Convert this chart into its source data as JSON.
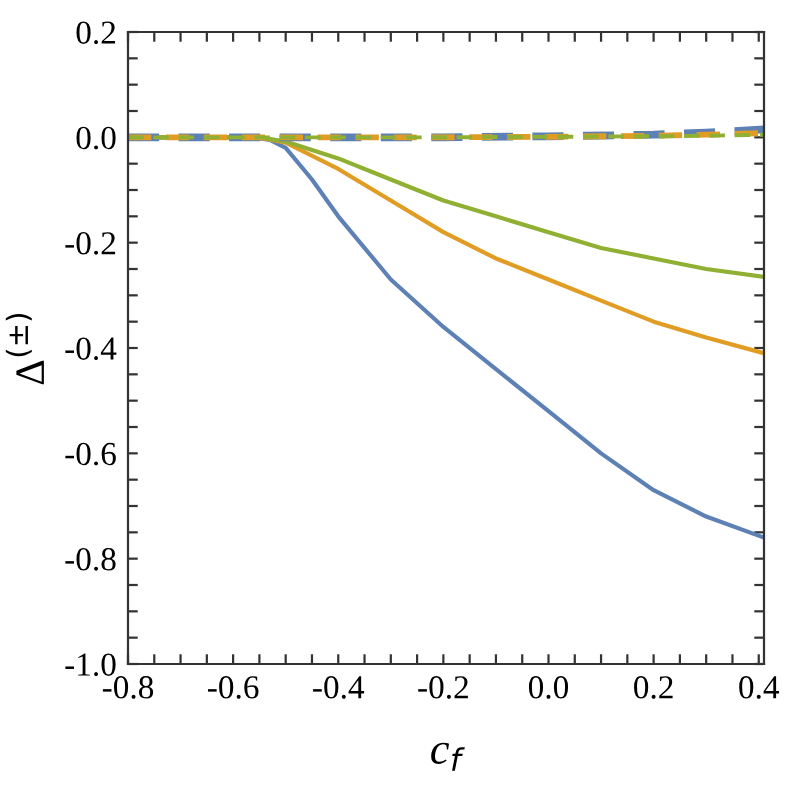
{
  "chart_data": {
    "type": "line",
    "xlabel": "c$_{f}$",
    "ylabel": "Δ$^{(±)}$",
    "xlim": [
      -0.8,
      0.41
    ],
    "ylim": [
      -1.0,
      0.2
    ],
    "xticks": [
      -0.8,
      {
        "value": -0.75,
        "label": null
      },
      {
        "value": -0.7,
        "label": null
      },
      {
        "value": -0.65,
        "label": null
      },
      -0.6,
      {
        "value": -0.55,
        "label": null
      },
      {
        "value": -0.5,
        "label": null
      },
      {
        "value": -0.45,
        "label": null
      },
      -0.4,
      {
        "value": -0.35,
        "label": null
      },
      {
        "value": -0.3,
        "label": null
      },
      {
        "value": -0.25,
        "label": null
      },
      -0.2,
      {
        "value": -0.15,
        "label": null
      },
      {
        "value": -0.1,
        "label": null
      },
      {
        "value": -0.05,
        "label": null
      },
      {
        "value": 0,
        "label": "0.0"
      },
      {
        "value": 0.05,
        "label": null
      },
      {
        "value": 0.1,
        "label": null
      },
      {
        "value": 0.15,
        "label": null
      },
      0.2,
      {
        "value": 0.25,
        "label": null
      },
      {
        "value": 0.3,
        "label": null
      },
      {
        "value": 0.35,
        "label": null
      },
      0.4
    ],
    "yticks": [
      {
        "value": -1.0,
        "label": "-1.0"
      },
      {
        "value": -0.95,
        "label": null
      },
      {
        "value": -0.9,
        "label": null
      },
      {
        "value": -0.85,
        "label": null
      },
      -0.8,
      {
        "value": -0.75,
        "label": null
      },
      {
        "value": -0.7,
        "label": null
      },
      {
        "value": -0.65,
        "label": null
      },
      -0.6,
      {
        "value": -0.55,
        "label": null
      },
      {
        "value": -0.5,
        "label": null
      },
      {
        "value": -0.45,
        "label": null
      },
      -0.4,
      {
        "value": -0.35,
        "label": null
      },
      {
        "value": -0.3,
        "label": null
      },
      {
        "value": -0.25,
        "label": null
      },
      -0.2,
      {
        "value": -0.15,
        "label": null
      },
      {
        "value": -0.1,
        "label": null
      },
      {
        "value": -0.05,
        "label": null
      },
      {
        "value": 0,
        "label": "0.0"
      },
      {
        "value": 0.05,
        "label": null
      },
      {
        "value": 0.1,
        "label": null
      },
      {
        "value": 0.15,
        "label": null
      },
      0.2
    ],
    "grid": false,
    "legend": false,
    "marker": "none",
    "series": [
      {
        "color": "#5e81b5",
        "line_style": "solid",
        "x": [
          -0.8,
          -0.6,
          -0.56,
          -0.53,
          -0.5,
          -0.45,
          -0.4,
          -0.3,
          -0.2,
          -0.1,
          0.0,
          0.1,
          0.2,
          0.3,
          0.41
        ],
        "values": [
          0,
          0,
          0,
          -0.005,
          -0.02,
          -0.08,
          -0.15,
          -0.27,
          -0.36,
          -0.44,
          -0.52,
          -0.6,
          -0.67,
          -0.72,
          -0.76
        ]
      },
      {
        "color": "#e19c24",
        "line_style": "solid",
        "x": [
          -0.8,
          -0.6,
          -0.55,
          -0.5,
          -0.4,
          -0.3,
          -0.2,
          -0.1,
          0.0,
          0.1,
          0.2,
          0.3,
          0.41
        ],
        "values": [
          0,
          0,
          0,
          -0.01,
          -0.06,
          -0.12,
          -0.18,
          -0.23,
          -0.27,
          -0.31,
          -0.35,
          -0.38,
          -0.41
        ]
      },
      {
        "color": "#8fb032",
        "line_style": "solid",
        "x": [
          -0.8,
          -0.6,
          -0.55,
          -0.5,
          -0.4,
          -0.3,
          -0.2,
          -0.1,
          0.0,
          0.1,
          0.2,
          0.3,
          0.41
        ],
        "values": [
          0,
          0,
          0,
          -0.008,
          -0.04,
          -0.08,
          -0.12,
          -0.15,
          -0.18,
          -0.21,
          -0.23,
          -0.25,
          -0.265
        ]
      },
      {
        "color": "#5e81b5",
        "line_style": "dashed",
        "x": [
          -0.8,
          -0.5,
          -0.2,
          0.0,
          0.2,
          0.3,
          0.41
        ],
        "values": [
          0,
          0,
          0,
          0.002,
          0.005,
          0.009,
          0.015
        ]
      },
      {
        "color": "#e19c24",
        "line_style": "dashed",
        "x": [
          -0.8,
          -0.5,
          -0.2,
          0.0,
          0.2,
          0.3,
          0.41
        ],
        "values": [
          0,
          0,
          0,
          0.001,
          0.003,
          0.005,
          0.008
        ]
      },
      {
        "color": "#8fb032",
        "line_style": "dashed",
        "x": [
          -0.8,
          -0.5,
          -0.2,
          0.0,
          0.2,
          0.3,
          0.41
        ],
        "values": [
          0,
          0,
          0,
          0.001,
          0.002,
          0.003,
          0.005
        ]
      }
    ]
  }
}
